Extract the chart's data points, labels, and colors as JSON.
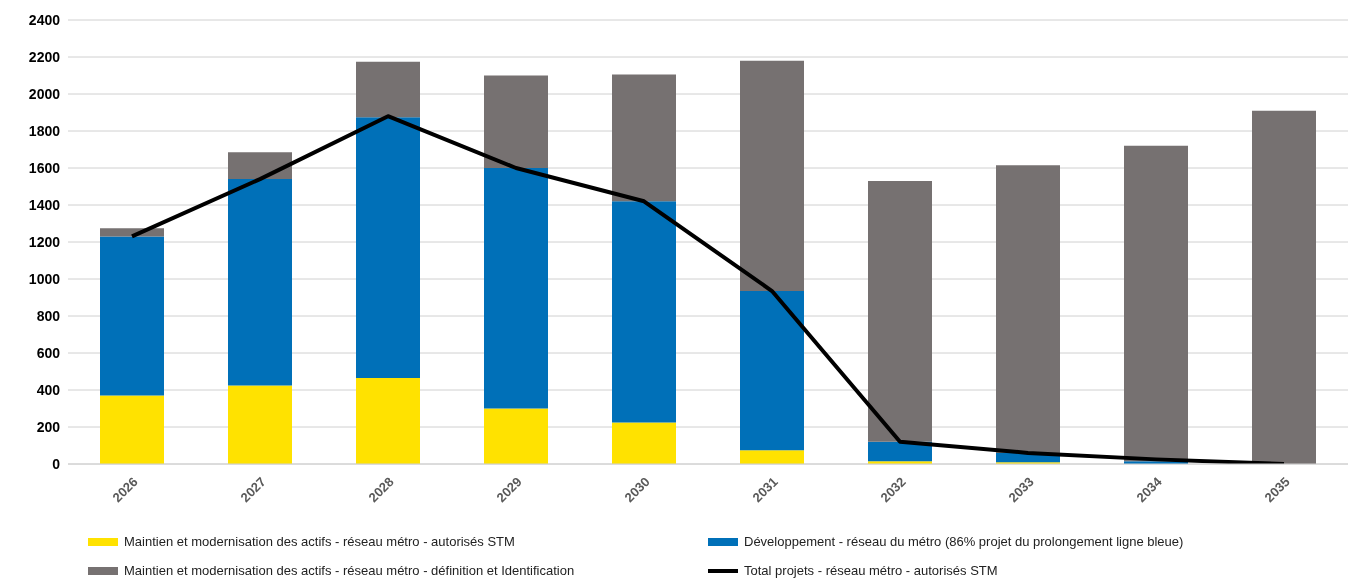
{
  "chart_data": {
    "type": "bar",
    "stacked": true,
    "categories": [
      "2026",
      "2027",
      "2028",
      "2029",
      "2030",
      "2031",
      "2032",
      "2033",
      "2034",
      "2035"
    ],
    "series": [
      {
        "name": "Maintien et modernisation des actifs - réseau métro - autorisés STM",
        "color": "#ffe200",
        "values": [
          370,
          425,
          465,
          300,
          225,
          75,
          15,
          10,
          0,
          0
        ]
      },
      {
        "name": "Développement - réseau du métro (86% projet du prolongement ligne bleue)",
        "color": "#0070b8",
        "values": [
          860,
          1115,
          1410,
          1300,
          1195,
          860,
          105,
          50,
          15,
          0
        ]
      },
      {
        "name": "Maintien et modernisation des actifs - réseau métro - définition et Identification",
        "color": "#767171",
        "values": [
          45,
          145,
          300,
          500,
          685,
          1245,
          1410,
          1555,
          1705,
          1910
        ]
      },
      {
        "name": "Total projets - réseau métro - autorisés STM",
        "type": "line",
        "color": "#000000",
        "values": [
          1230,
          1540,
          1880,
          1600,
          1420,
          935,
          120,
          60,
          25,
          0
        ]
      }
    ],
    "ylim": [
      0,
      2400
    ],
    "yticks": [
      0,
      200,
      400,
      600,
      800,
      1000,
      1200,
      1400,
      1600,
      1800,
      2000,
      2200,
      2400
    ],
    "grid": "y",
    "legend": "bottom",
    "marker": "none",
    "line_style": "solid"
  }
}
